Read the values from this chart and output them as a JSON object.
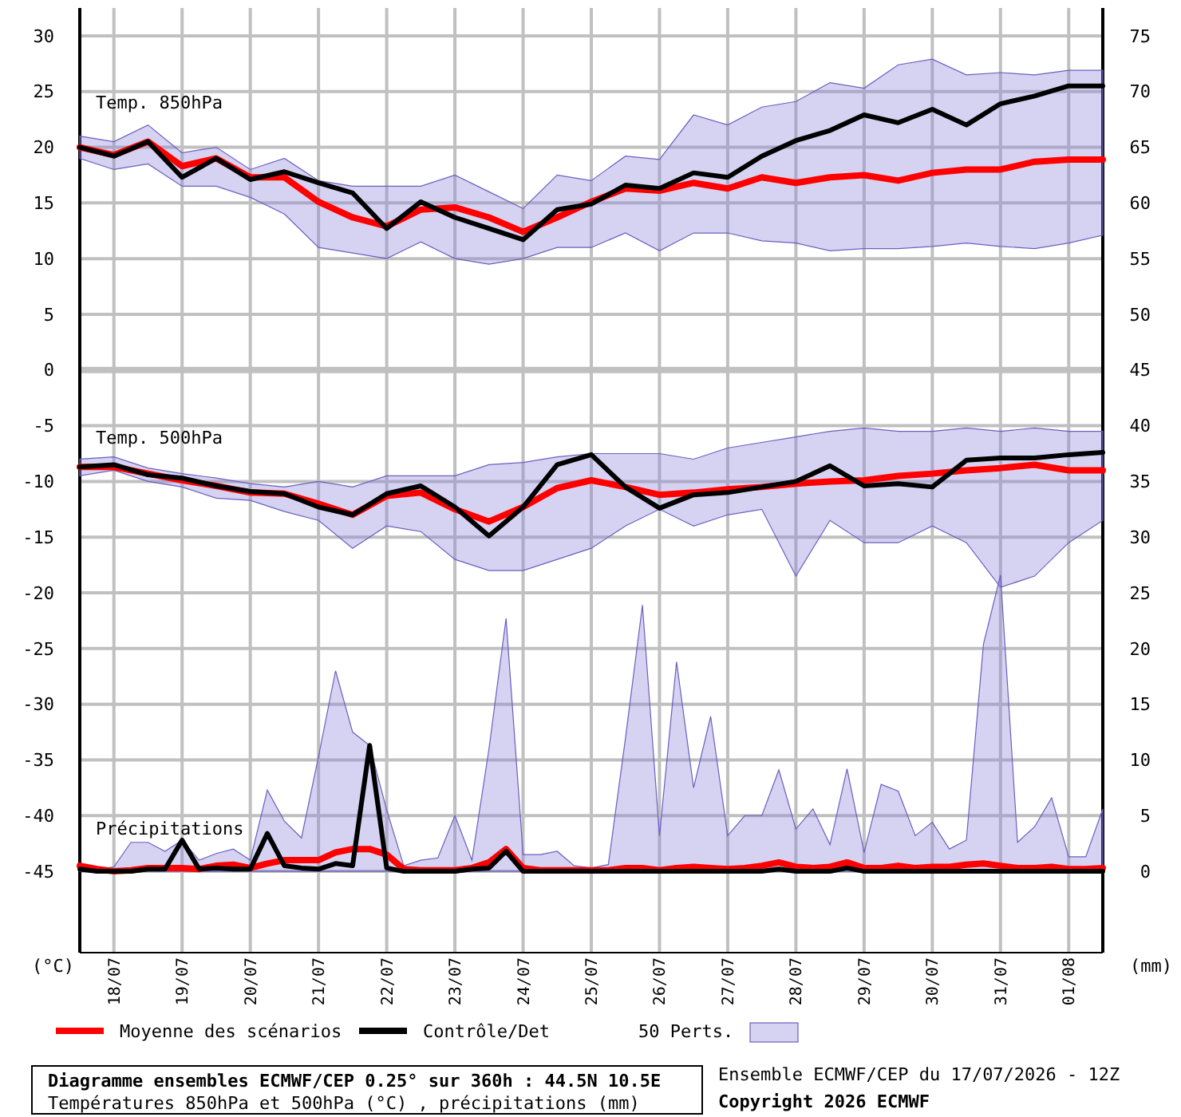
{
  "chart_data": {
    "type": "line",
    "title": "Diagramme ensembles ECMWF/CEP 0.25° sur 360h : 44.5N 10.5E",
    "subtitle": "Températures 850hPa et 500hPa (°C) , précipitations (mm)",
    "ylabel": "(°C)",
    "y2label": "(mm)",
    "annotations": [
      "Temp. 850hPa",
      "Temp. 500hPa",
      "Précipitations",
      "50 Perts.",
      "Ensemble ECMWF/CEP du 17/07/2026 - 12Z",
      "Copyright 2026 ECMWF"
    ],
    "x": [
      "2026-07-17T12:00",
      "2026-07-18T00:00",
      "2026-07-18T12:00",
      "2026-07-19T00:00",
      "2026-07-19T12:00",
      "2026-07-20T00:00",
      "2026-07-20T12:00",
      "2026-07-21T00:00",
      "2026-07-21T12:00",
      "2026-07-22T00:00",
      "2026-07-22T12:00",
      "2026-07-23T00:00",
      "2026-07-23T12:00",
      "2026-07-24T00:00",
      "2026-07-24T12:00",
      "2026-07-25T00:00",
      "2026-07-25T12:00",
      "2026-07-26T00:00",
      "2026-07-26T12:00",
      "2026-07-27T00:00",
      "2026-07-27T12:00",
      "2026-07-28T00:00",
      "2026-07-28T12:00",
      "2026-07-29T00:00",
      "2026-07-29T12:00",
      "2026-07-30T00:00",
      "2026-07-30T12:00",
      "2026-07-31T00:00",
      "2026-07-31T12:00",
      "2026-08-01T00:00",
      "2026-08-01T12:00"
    ],
    "xlim": [
      "2026-07-17T12:00",
      "2026-08-01T12:00"
    ],
    "xticks": [
      {
        "value": "2026-07-18",
        "label": "18/07"
      },
      {
        "value": "2026-07-19",
        "label": "19/07"
      },
      {
        "value": "2026-07-20",
        "label": "20/07"
      },
      {
        "value": "2026-07-21",
        "label": "21/07"
      },
      {
        "value": "2026-07-22",
        "label": "22/07"
      },
      {
        "value": "2026-07-23",
        "label": "23/07"
      },
      {
        "value": "2026-07-24",
        "label": "24/07"
      },
      {
        "value": "2026-07-25",
        "label": "25/07"
      },
      {
        "value": "2026-07-26",
        "label": "26/07"
      },
      {
        "value": "2026-07-27",
        "label": "27/07"
      },
      {
        "value": "2026-07-28",
        "label": "28/07"
      },
      {
        "value": "2026-07-29",
        "label": "29/07"
      },
      {
        "value": "2026-07-30",
        "label": "30/07"
      },
      {
        "value": "2026-07-31",
        "label": "31/07"
      },
      {
        "value": "2026-08-01",
        "label": "01/08"
      }
    ],
    "ylim": [
      -52.3,
      32.5
    ],
    "yticks": [
      30,
      25,
      20,
      15,
      10,
      5,
      0,
      -5,
      -10,
      -15,
      -20,
      -25,
      -30,
      -35,
      -40,
      -45
    ],
    "y2lim": [
      -7.3,
      77.5
    ],
    "y2ticks": [
      75,
      70,
      65,
      60,
      55,
      50,
      45,
      40,
      35,
      30,
      25,
      20,
      15,
      10,
      5,
      0
    ],
    "grid": true,
    "legend": "bottom",
    "marker": "none",
    "series": [
      {
        "name": "Moyenne des scénarios",
        "color": "#ff0000",
        "values": [
          20.0,
          19.3,
          20.5,
          18.3,
          19.0,
          17.3,
          17.3,
          15.1,
          13.7,
          12.9,
          14.4,
          14.6,
          13.7,
          12.4,
          13.7,
          15.1,
          16.3,
          16.1,
          16.8,
          16.3,
          17.3,
          16.8,
          17.3,
          17.5,
          17.0,
          17.7,
          18.0,
          18.0,
          18.7,
          18.9,
          18.9
        ],
        "lower": [
          19,
          18,
          18.5,
          16.5,
          16.5,
          15.5,
          14,
          11,
          10.5,
          10,
          11.5,
          10,
          9.5,
          10,
          11,
          11,
          12.3,
          10.7,
          12.3,
          12.3,
          11.6,
          11.4,
          10.7,
          10.9,
          10.9,
          11.1,
          11.4,
          11.1,
          10.9,
          11.4,
          12.1
        ],
        "upper": [
          21,
          20.5,
          22,
          19.5,
          20,
          18,
          19,
          17,
          16.5,
          16.5,
          16.5,
          17.5,
          16,
          14.5,
          17.5,
          17,
          19.2,
          18.9,
          22.9,
          22.0,
          23.6,
          24.1,
          25.8,
          25.3,
          27.4,
          27.9,
          26.5,
          26.7,
          26.5,
          26.9,
          26.9
        ]
      },
      {
        "name": "Contrôle/Det",
        "color": "#000000",
        "values": [
          20.0,
          19.2,
          20.5,
          17.3,
          19.0,
          17.1,
          17.8,
          16.8,
          15.9,
          12.7,
          15.1,
          13.7,
          12.7,
          11.7,
          14.4,
          14.9,
          16.6,
          16.3,
          17.7,
          17.3,
          19.2,
          20.6,
          21.5,
          22.9,
          22.2,
          23.4,
          22.0,
          23.9,
          24.6,
          25.5,
          25.5
        ]
      },
      {
        "color": "#ff0000",
        "values": [
          -8.7,
          -8.7,
          -9.3,
          -9.9,
          -10.4,
          -11.0,
          -11.1,
          -12.0,
          -13.0,
          -11.3,
          -11.0,
          -12.5,
          -13.6,
          -12.3,
          -10.6,
          -9.9,
          -10.5,
          -11.2,
          -11.0,
          -10.7,
          -10.5,
          -10.2,
          -10.0,
          -9.9,
          -9.5,
          -9.3,
          -9.0,
          -8.8,
          -8.5,
          -9.0,
          -9.0
        ],
        "lower": [
          -9.5,
          -9,
          -10,
          -10.5,
          -11.5,
          -11.7,
          -12.7,
          -13.5,
          -16,
          -14,
          -14.5,
          -17,
          -18,
          -18,
          -17,
          -16,
          -14,
          -12.5,
          -14,
          -13,
          -12.5,
          -18.5,
          -13.5,
          -15.5,
          -15.5,
          -14,
          -15.5,
          -19.5,
          -18.5,
          -15.5,
          -13.5
        ],
        "upper": [
          -8,
          -7.8,
          -8.8,
          -9.3,
          -9.7,
          -10.2,
          -10.5,
          -10,
          -10.5,
          -9.5,
          -9.5,
          -9.5,
          -8.5,
          -8.3,
          -7.8,
          -7.5,
          -7.5,
          -7.5,
          -8,
          -7,
          -6.5,
          -6,
          -5.5,
          -5.2,
          -5.5,
          -5.5,
          -5.2,
          -5.5,
          -5.2,
          -5.5,
          -5.5
        ]
      },
      {
        "color": "#000000",
        "values": [
          -8.7,
          -8.5,
          -9.4,
          -9.7,
          -10.4,
          -10.9,
          -11.1,
          -12.3,
          -13.0,
          -11.1,
          -10.4,
          -12.3,
          -14.9,
          -12.3,
          -8.5,
          -7.6,
          -10.5,
          -12.4,
          -11.2,
          -11.0,
          -10.5,
          -10.0,
          -8.6,
          -10.4,
          -10.2,
          -10.5,
          -8.1,
          -7.9,
          -7.9,
          -7.6,
          -7.4
        ]
      },
      {
        "color": "#ff0000",
        "axis": "y2",
        "x": [
          "2026-07-17T12:00",
          "2026-07-17T18:00",
          "2026-07-18T00:00",
          "2026-07-18T06:00",
          "2026-07-18T12:00",
          "2026-07-18T18:00",
          "2026-07-19T00:00",
          "2026-07-19T06:00",
          "2026-07-19T12:00",
          "2026-07-19T18:00",
          "2026-07-20T00:00",
          "2026-07-20T06:00",
          "2026-07-20T12:00",
          "2026-07-20T18:00",
          "2026-07-21T00:00",
          "2026-07-21T06:00",
          "2026-07-21T12:00",
          "2026-07-21T18:00",
          "2026-07-22T00:00",
          "2026-07-22T06:00",
          "2026-07-22T12:00",
          "2026-07-22T18:00",
          "2026-07-23T00:00",
          "2026-07-23T06:00",
          "2026-07-23T12:00",
          "2026-07-23T18:00",
          "2026-07-24T00:00",
          "2026-07-24T06:00",
          "2026-07-24T12:00",
          "2026-07-24T18:00",
          "2026-07-25T00:00",
          "2026-07-25T06:00",
          "2026-07-25T12:00",
          "2026-07-25T18:00",
          "2026-07-26T00:00",
          "2026-07-26T06:00",
          "2026-07-26T12:00",
          "2026-07-26T18:00",
          "2026-07-27T00:00",
          "2026-07-27T06:00",
          "2026-07-27T12:00",
          "2026-07-27T18:00",
          "2026-07-28T00:00",
          "2026-07-28T06:00",
          "2026-07-28T12:00",
          "2026-07-28T18:00",
          "2026-07-29T00:00",
          "2026-07-29T06:00",
          "2026-07-29T12:00",
          "2026-07-29T18:00",
          "2026-07-30T00:00",
          "2026-07-30T06:00",
          "2026-07-30T12:00",
          "2026-07-30T18:00",
          "2026-07-31T00:00",
          "2026-07-31T06:00",
          "2026-07-31T12:00",
          "2026-07-31T18:00",
          "2026-08-01T00:00",
          "2026-08-01T06:00",
          "2026-08-01T12:00"
        ],
        "values": [
          0.5,
          0.2,
          0,
          0.1,
          0.3,
          0.3,
          0.3,
          0.2,
          0.5,
          0.6,
          0.3,
          0.7,
          1.0,
          1.0,
          1.0,
          1.7,
          2.0,
          2.0,
          1.5,
          0.2,
          0.1,
          0.1,
          0.1,
          0.3,
          0.8,
          2.0,
          0.3,
          0.1,
          0.1,
          0.1,
          0.1,
          0.1,
          0.3,
          0.3,
          0.1,
          0.3,
          0.4,
          0.3,
          0.2,
          0.3,
          0.5,
          0.8,
          0.4,
          0.3,
          0.4,
          0.8,
          0.3,
          0.3,
          0.5,
          0.3,
          0.4,
          0.4,
          0.6,
          0.7,
          0.5,
          0.3,
          0.3,
          0.4,
          0.2,
          0.2,
          0.3
        ],
        "lower": [
          0,
          0,
          0,
          0,
          0,
          0,
          0,
          0,
          0,
          0,
          0,
          0,
          0,
          0,
          0,
          0,
          0,
          0,
          0,
          0,
          0,
          0,
          0,
          0,
          0,
          0,
          0,
          0,
          0,
          0,
          0,
          0,
          0,
          0,
          0,
          0,
          0,
          0,
          0,
          0,
          0,
          0,
          0,
          0,
          0,
          0,
          0,
          0,
          0,
          0,
          0,
          0,
          0,
          0,
          0,
          0,
          0,
          0,
          0,
          0,
          0
        ],
        "upper": [
          0.6,
          0.2,
          0.4,
          2.6,
          2.6,
          1.8,
          2.8,
          1.0,
          1.6,
          2.0,
          1.0,
          7.3,
          4.5,
          3.0,
          10.3,
          18.0,
          12.5,
          11.3,
          5.5,
          0.5,
          1.0,
          1.2,
          5.0,
          1.0,
          11.0,
          22.7,
          1.5,
          1.5,
          1.8,
          0.5,
          0.3,
          0.6,
          11.9,
          23.9,
          3.2,
          18.8,
          7.5,
          13.9,
          3.2,
          5.0,
          5.0,
          9.1,
          3.8,
          5.6,
          2.4,
          9.2,
          1.7,
          7.8,
          7.2,
          3.2,
          4.4,
          2.0,
          2.8,
          20.4,
          26.6,
          2.6,
          4.0,
          6.6,
          1.3,
          1.3,
          5.6
        ]
      },
      {
        "color": "#000000",
        "axis": "y2",
        "x": [
          "2026-07-17T12:00",
          "2026-07-17T18:00",
          "2026-07-18T00:00",
          "2026-07-18T06:00",
          "2026-07-18T12:00",
          "2026-07-18T18:00",
          "2026-07-19T00:00",
          "2026-07-19T06:00",
          "2026-07-19T12:00",
          "2026-07-19T18:00",
          "2026-07-20T00:00",
          "2026-07-20T06:00",
          "2026-07-20T12:00",
          "2026-07-20T18:00",
          "2026-07-21T00:00",
          "2026-07-21T06:00",
          "2026-07-21T12:00",
          "2026-07-21T18:00",
          "2026-07-22T00:00",
          "2026-07-22T06:00",
          "2026-07-22T12:00",
          "2026-07-22T18:00",
          "2026-07-23T00:00",
          "2026-07-23T06:00",
          "2026-07-23T12:00",
          "2026-07-23T18:00",
          "2026-07-24T00:00",
          "2026-07-24T06:00",
          "2026-07-24T12:00",
          "2026-07-24T18:00",
          "2026-07-25T00:00",
          "2026-07-25T06:00",
          "2026-07-25T12:00",
          "2026-07-25T18:00",
          "2026-07-26T00:00",
          "2026-07-26T06:00",
          "2026-07-26T12:00",
          "2026-07-26T18:00",
          "2026-07-27T00:00",
          "2026-07-27T06:00",
          "2026-07-27T12:00",
          "2026-07-27T18:00",
          "2026-07-28T00:00",
          "2026-07-28T06:00",
          "2026-07-28T12:00",
          "2026-07-28T18:00",
          "2026-07-29T00:00",
          "2026-07-29T06:00",
          "2026-07-29T12:00",
          "2026-07-29T18:00",
          "2026-07-30T00:00",
          "2026-07-30T06:00",
          "2026-07-30T12:00",
          "2026-07-30T18:00",
          "2026-07-31T00:00",
          "2026-07-31T06:00",
          "2026-07-31T12:00",
          "2026-07-31T18:00",
          "2026-08-01T00:00",
          "2026-08-01T06:00",
          "2026-08-01T12:00"
        ],
        "values": [
          0.2,
          0,
          0,
          0,
          0.2,
          0.2,
          2.8,
          0.2,
          0.3,
          0.2,
          0.2,
          3.4,
          0.5,
          0.3,
          0.2,
          0.7,
          0.5,
          11.3,
          0.3,
          0,
          0,
          0,
          0,
          0.2,
          0.3,
          1.8,
          0,
          0,
          0,
          0,
          0,
          0,
          0,
          0,
          0,
          0,
          0,
          0,
          0,
          0,
          0,
          0.2,
          0,
          0,
          0,
          0.3,
          0,
          0,
          0,
          0,
          0,
          0,
          0,
          0,
          0,
          0,
          0,
          0,
          0,
          0,
          0
        ]
      }
    ]
  }
}
